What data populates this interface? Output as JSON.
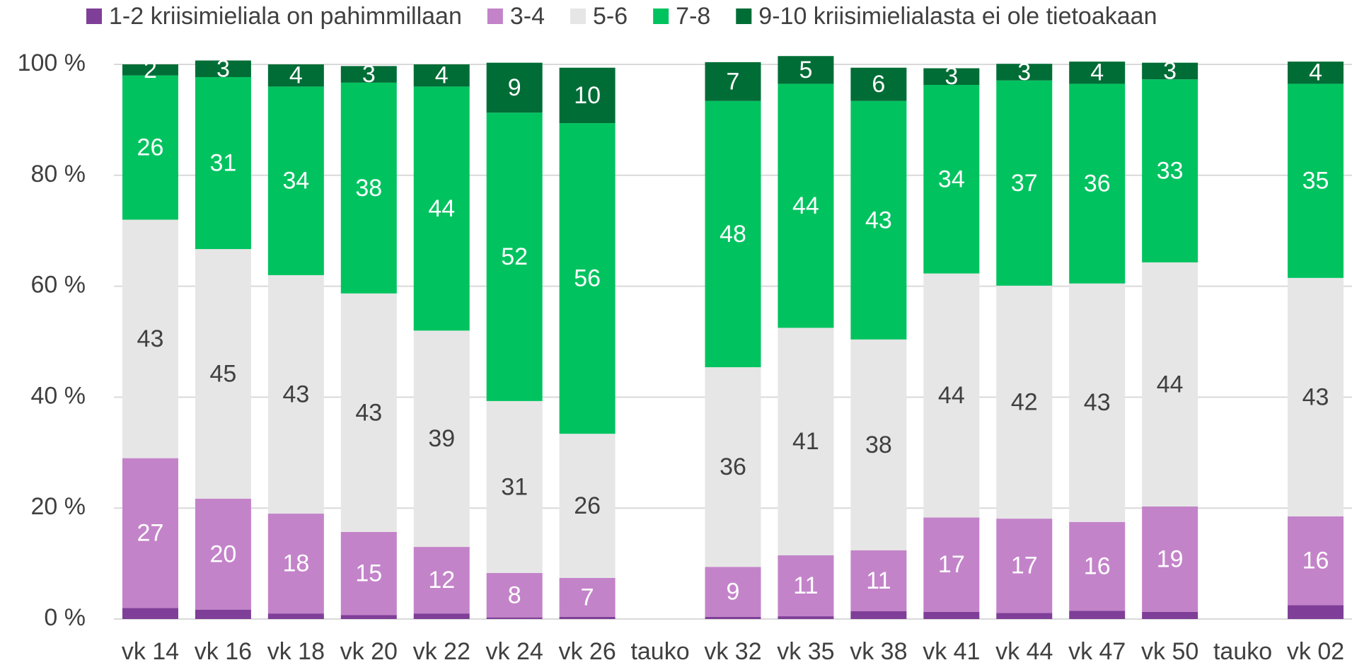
{
  "chart_data": {
    "type": "stacked_bar",
    "categories": [
      "vk 14",
      "vk 16",
      "vk 18",
      "vk 20",
      "vk 22",
      "vk 24",
      "vk 26",
      "tauko",
      "vk 32",
      "vk 35",
      "vk 38",
      "vk 41",
      "vk 44",
      "vk 47",
      "vk 50",
      "tauko",
      "vk 02"
    ],
    "series": [
      {
        "name": "1-2 kriisimieliala on pahimmillaan",
        "color": "#7f3f98",
        "show_labels": false,
        "label_color": "#ffffff",
        "values": [
          2,
          1.7,
          1,
          0.7,
          1,
          0.3,
          0.4,
          null,
          0.4,
          0.5,
          1.4,
          1.3,
          1.1,
          1.5,
          1.3,
          null,
          2.5
        ]
      },
      {
        "name": "3-4",
        "color": "#c383c9",
        "show_labels": true,
        "label_color": "#ffffff",
        "values": [
          27,
          20,
          18,
          15,
          12,
          8,
          7,
          null,
          9,
          11,
          11,
          17,
          17,
          16,
          19,
          null,
          16
        ]
      },
      {
        "name": "5-6",
        "color": "#e6e6e6",
        "show_labels": true,
        "label_color": "#404040",
        "values": [
          43,
          45,
          43,
          43,
          39,
          31,
          26,
          null,
          36,
          41,
          38,
          44,
          42,
          43,
          44,
          null,
          43
        ]
      },
      {
        "name": "7-8",
        "color": "#00c35f",
        "show_labels": true,
        "label_color": "#ffffff",
        "values": [
          26,
          31,
          34,
          38,
          44,
          52,
          56,
          null,
          48,
          44,
          43,
          34,
          37,
          36,
          33,
          null,
          35
        ]
      },
      {
        "name": "9-10 kriisimielialasta ei ole tietoakaan",
        "color": "#006d36",
        "show_labels": true,
        "label_color": "#ffffff",
        "values": [
          2,
          3,
          4,
          3,
          4,
          9,
          10,
          null,
          7,
          5,
          6,
          3,
          3,
          4,
          3,
          null,
          4
        ]
      }
    ],
    "ylim": [
      0,
      100
    ],
    "yticks": [
      {
        "value": 0,
        "label": "0 %"
      },
      {
        "value": 20,
        "label": "20 %"
      },
      {
        "value": 40,
        "label": "40 %"
      },
      {
        "value": 60,
        "label": "60 %"
      },
      {
        "value": 80,
        "label": "80 %"
      },
      {
        "value": 100,
        "label": "100 %"
      }
    ],
    "grid": true,
    "legend": "top"
  }
}
